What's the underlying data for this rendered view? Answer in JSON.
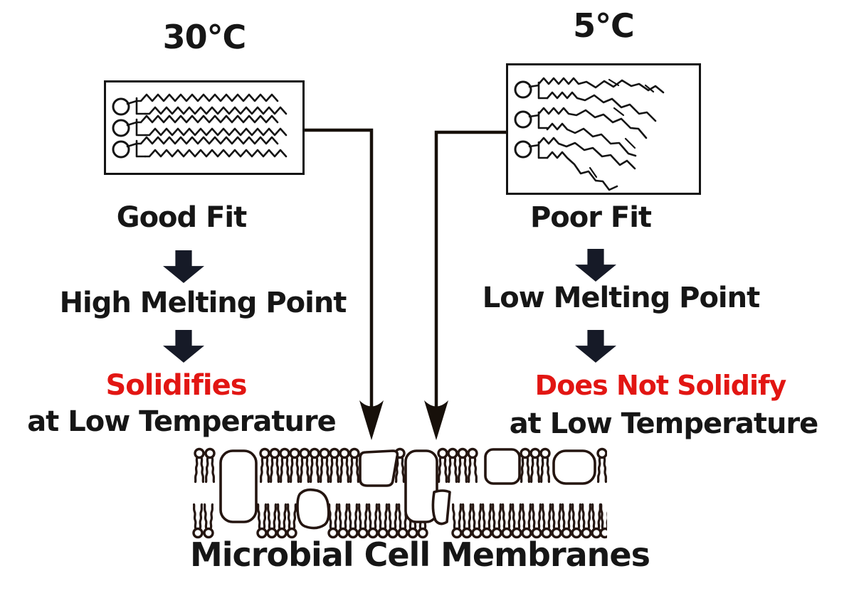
{
  "left_column": {
    "temperature": "30℃",
    "fit_label": "Good Fit",
    "melting_point_label": "High Melting Point",
    "outcome_label": "Solidifies",
    "outcome_condition": "at Low Temperature"
  },
  "right_column": {
    "temperature": "5℃",
    "fit_label": "Poor Fit",
    "melting_point_label": "Low Melting Point",
    "outcome_label": "Does Not Solidify",
    "outcome_condition": "at Low Temperature"
  },
  "membrane_caption": "Microbial Cell Membranes",
  "colors": {
    "text": "#161616",
    "highlight_red": "#e21613",
    "block_arrow": "#161a27",
    "line_art": "#17100a",
    "membrane_ink": "#241510"
  },
  "icons": {
    "block_arrow_down": "down-block-arrow",
    "connector_arrow_down": "down-connector-arrow"
  }
}
